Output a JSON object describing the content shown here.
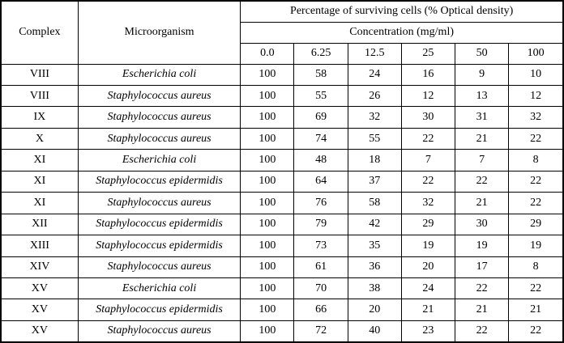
{
  "chart_data": {
    "type": "table",
    "title": "Percentage of surviving cells (% Optical density)",
    "concentration_header": "Concentration (mg/ml)",
    "complex_header": "Complex",
    "microorganism_header": "Microorganism",
    "concentrations": [
      "0.0",
      "6.25",
      "12.5",
      "25",
      "50",
      "100"
    ],
    "rows": [
      {
        "complex": "VIII",
        "microorganism": "Escherichia coli",
        "values": [
          100,
          58,
          24,
          16,
          9,
          10
        ]
      },
      {
        "complex": "VIII",
        "microorganism": "Staphylococcus aureus",
        "values": [
          100,
          55,
          26,
          12,
          13,
          12
        ]
      },
      {
        "complex": "IX",
        "microorganism": "Staphylococcus aureus",
        "values": [
          100,
          69,
          32,
          30,
          31,
          32
        ]
      },
      {
        "complex": "X",
        "microorganism": "Staphylococcus aureus",
        "values": [
          100,
          74,
          55,
          22,
          21,
          22
        ]
      },
      {
        "complex": "XI",
        "microorganism": "Escherichia coli",
        "values": [
          100,
          48,
          18,
          7,
          7,
          8
        ]
      },
      {
        "complex": "XI",
        "microorganism": "Staphylococcus epidermidis",
        "values": [
          100,
          64,
          37,
          22,
          22,
          22
        ]
      },
      {
        "complex": "XI",
        "microorganism": "Staphylococcus aureus",
        "values": [
          100,
          76,
          58,
          32,
          21,
          22
        ]
      },
      {
        "complex": "XII",
        "microorganism": "Staphylococcus epidermidis",
        "values": [
          100,
          79,
          42,
          29,
          30,
          29
        ]
      },
      {
        "complex": "XIII",
        "microorganism": "Staphylococcus epidermidis",
        "values": [
          100,
          73,
          35,
          19,
          19,
          19
        ]
      },
      {
        "complex": "XIV",
        "microorganism": "Staphylococcus aureus",
        "values": [
          100,
          61,
          36,
          20,
          17,
          8
        ]
      },
      {
        "complex": "XV",
        "microorganism": "Escherichia coli",
        "values": [
          100,
          70,
          38,
          24,
          22,
          22
        ]
      },
      {
        "complex": "XV",
        "microorganism": "Staphylococcus epidermidis",
        "values": [
          100,
          66,
          20,
          21,
          21,
          21
        ]
      },
      {
        "complex": "XV",
        "microorganism": "Staphylococcus aureus",
        "values": [
          100,
          72,
          40,
          23,
          22,
          22
        ]
      }
    ]
  }
}
